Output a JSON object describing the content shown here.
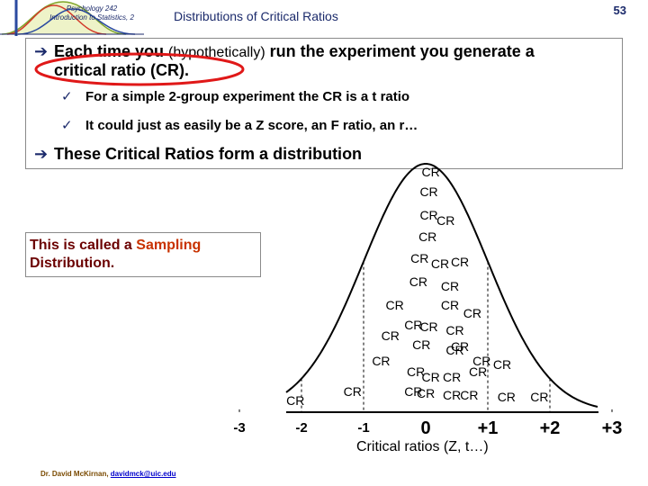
{
  "header": {
    "course": "Psychology 242 Introduction to Statistics, 2",
    "title": "Distributions of Critical Ratios",
    "page_number": "53"
  },
  "bullets": {
    "b1_part1": "Each time you ",
    "b1_hypo": "(hypothetically)",
    "b1_part2": " run the experiment you generate a",
    "b1_line2": "critical ratio (CR).",
    "sub1": "For a simple 2-group experiment the CR is a t ratio",
    "sub2": "It could just as easily be a Z score, an F ratio, an r…",
    "b2": "These Critical Ratios form a distribution"
  },
  "callout": {
    "part1": "This is called a ",
    "highlight": "Sampling",
    "part2": "Distribution."
  },
  "chart_data": {
    "type": "scatter",
    "description_label": "CR",
    "xlabel": "Critical ratios (Z, t…)",
    "tick_labels": [
      "-3",
      "-2",
      "-1",
      "0",
      "+1",
      "+2",
      "+3"
    ],
    "x_range": [
      -3.5,
      3.5
    ],
    "curve": "normal",
    "points_x": [
      0.08,
      0.05,
      0.05,
      0.32,
      0.03,
      -0.1,
      0.23,
      0.55,
      -0.12,
      0.39,
      -0.5,
      0.39,
      0.75,
      -0.2,
      0.05,
      0.47,
      -0.57,
      -0.07,
      0.47,
      0.55,
      0.9,
      -0.72,
      -0.16,
      0.08,
      0.42,
      0.84,
      1.23,
      -0.2,
      0.42,
      -2.1,
      -1.18,
      0.0,
      0.7,
      1.3,
      1.83
    ]
  },
  "footer": {
    "author": "Dr. David McKirnan, ",
    "email": "davidmck@uic.edu"
  }
}
